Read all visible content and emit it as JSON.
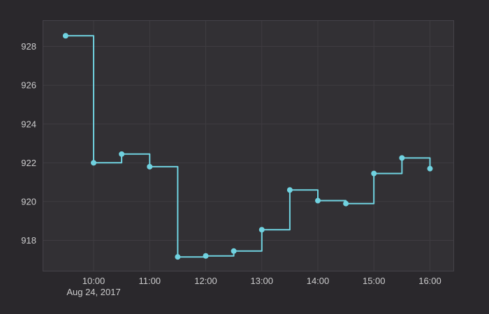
{
  "chart_data": {
    "type": "line",
    "subtype": "step-after",
    "title": "",
    "xlabel": "",
    "ylabel": "",
    "legend": false,
    "grid": true,
    "x_axis_date_label": "Aug 24, 2017",
    "point_times": [
      "09:30",
      "10:00",
      "10:30",
      "11:00",
      "11:30",
      "12:00",
      "12:30",
      "13:00",
      "13:30",
      "14:00",
      "14:30",
      "15:00",
      "15:30",
      "16:00"
    ],
    "x_hours": [
      9.5,
      10,
      10.5,
      11,
      11.5,
      12,
      12.5,
      13,
      13.5,
      14,
      14.5,
      15,
      15.5,
      16
    ],
    "values": [
      928.55,
      922.0,
      922.45,
      921.8,
      917.15,
      917.2,
      917.45,
      918.55,
      920.6,
      920.05,
      919.9,
      921.45,
      922.25,
      921.7
    ],
    "x_ticks": [
      {
        "hour": 10,
        "label": "10:00"
      },
      {
        "hour": 11,
        "label": "11:00"
      },
      {
        "hour": 12,
        "label": "12:00"
      },
      {
        "hour": 13,
        "label": "13:00"
      },
      {
        "hour": 14,
        "label": "14:00"
      },
      {
        "hour": 15,
        "label": "15:00"
      },
      {
        "hour": 16,
        "label": "16:00"
      }
    ],
    "y_ticks": [
      918,
      920,
      922,
      924,
      926,
      928
    ],
    "xlim": [
      9.09,
      16.43
    ],
    "ylim": [
      916.4,
      929.35
    ]
  },
  "colors": {
    "page_bg": "#2a282c",
    "plot_bg": "#323034",
    "grid": "#3f3c41",
    "plot_border": "#454249",
    "axis_text": "#cccccd",
    "line": "#70d2e0",
    "marker": "#70d2e0"
  }
}
